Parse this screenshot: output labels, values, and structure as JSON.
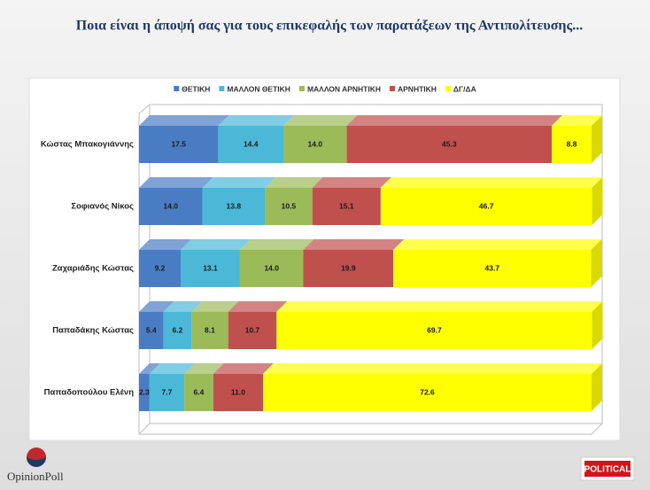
{
  "chart_data": {
    "type": "bar3d-stacked-horizontal",
    "title": "Ποια είναι η άποψή σας για τους επικεφαλής των παρατάξεων της Αντιπολίτευσης...",
    "categories": [
      "Κώστας Μπακογιάννης",
      "Σοφιανός Νίκος",
      "Ζαχαριάδης Κώστας",
      "Παπαδάκης Κώστας",
      "Παπαδοπούλου Ελένη"
    ],
    "xlim": [
      0,
      100
    ],
    "series": [
      {
        "name": "ΘΕΤΙΚΗ",
        "color": "#4a7cc4",
        "values": [
          17.5,
          14.0,
          9.2,
          5.4,
          2.3
        ],
        "value_labels": [
          "17.5",
          "14.0",
          "9.2",
          "5.4",
          "2.3"
        ]
      },
      {
        "name": "ΜΑΛΛΟΝ ΘΕΤΙΚΗ",
        "color": "#4bb8d8",
        "values": [
          14.4,
          13.8,
          13.1,
          6.2,
          7.7
        ],
        "value_labels": [
          "14.4",
          "13.8",
          "13.1",
          "6.2",
          "7.7"
        ]
      },
      {
        "name": "ΜΑΛΛΟΝ ΑΡΝΗΤΙΚΗ",
        "color": "#9bbb59",
        "values": [
          14.0,
          10.5,
          14.0,
          8.1,
          6.4
        ],
        "value_labels": [
          "14.0",
          "10.5",
          "14.0",
          "8.1",
          "6.4"
        ]
      },
      {
        "name": "ΑΡΝΗΤΙΚΗ",
        "color": "#c0504d",
        "values": [
          45.3,
          15.1,
          19.9,
          10.7,
          11.0
        ],
        "value_labels": [
          "45.3",
          "15.1",
          "19.9",
          "10.7",
          "11.0"
        ]
      },
      {
        "name": "ΔΓ/ΔΑ",
        "color": "#ffff00",
        "values": [
          8.8,
          46.7,
          43.7,
          69.7,
          72.6
        ],
        "value_labels": [
          "8.8",
          "46.7",
          "43.7",
          "69.7",
          "72.6"
        ]
      }
    ]
  },
  "branding": {
    "left": "OpinionPoll",
    "right": "POLITICAL"
  }
}
